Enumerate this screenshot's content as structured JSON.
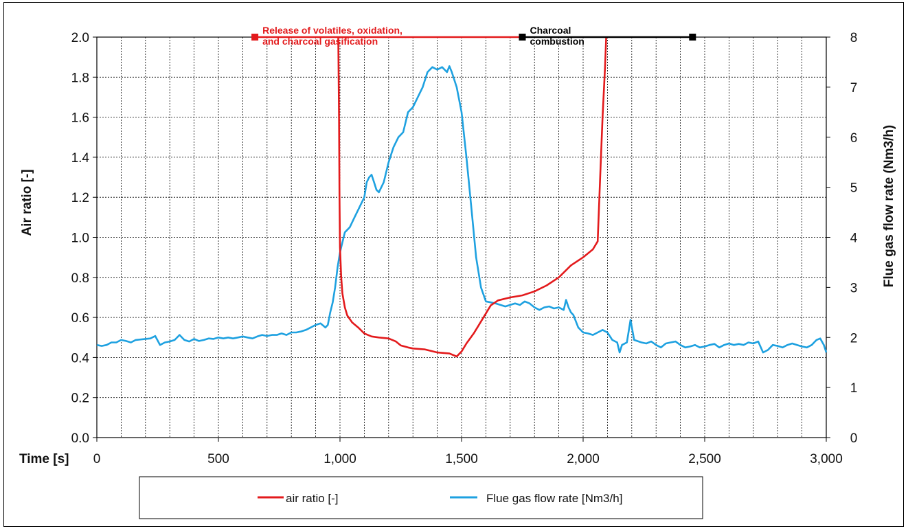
{
  "chart_data": {
    "type": "line",
    "xlabel": "Time [s]",
    "ylabel_left": "Air ratio [-]",
    "ylabel_right": "Flue gas flow rate (Nm3/h)",
    "xlim": [
      0,
      3000
    ],
    "ylim_left": [
      0,
      2
    ],
    "ylim_right": [
      0,
      8
    ],
    "grid": true,
    "legend_position": "bottom",
    "x_ticks": [
      "0",
      "500",
      "1,000",
      "1,500",
      "2,000",
      "2,500",
      "3,000"
    ],
    "y_left_ticks": [
      "0.0",
      "0.2",
      "0.4",
      "0.6",
      "0.8",
      "1.0",
      "1.2",
      "1.4",
      "1.6",
      "1.8",
      "2.0"
    ],
    "y_right_ticks": [
      "0",
      "1",
      "2",
      "3",
      "4",
      "5",
      "6",
      "7",
      "8"
    ],
    "phases": [
      {
        "label_line1": "Release of volatiles, oxidation,",
        "label_line2": "and charcoal gasification",
        "x_start": 650,
        "x_end": 1750,
        "y": 2.0,
        "color": "#e31a1c"
      },
      {
        "label_line1": "Charcoal",
        "label_line2": "combustion",
        "x_start": 1750,
        "x_end": 2450,
        "y": 2.0,
        "color": "#000000"
      }
    ],
    "series": [
      {
        "name": "air ratio  [-]",
        "axis": "left",
        "color": "#e31a1c",
        "points": [
          [
            993,
            2.0
          ],
          [
            996,
            1.6
          ],
          [
            998,
            1.2
          ],
          [
            1000,
            0.95
          ],
          [
            1005,
            0.8
          ],
          [
            1010,
            0.72
          ],
          [
            1020,
            0.65
          ],
          [
            1030,
            0.61
          ],
          [
            1050,
            0.575
          ],
          [
            1075,
            0.55
          ],
          [
            1100,
            0.52
          ],
          [
            1130,
            0.505
          ],
          [
            1160,
            0.5
          ],
          [
            1200,
            0.495
          ],
          [
            1230,
            0.48
          ],
          [
            1250,
            0.46
          ],
          [
            1280,
            0.45
          ],
          [
            1300,
            0.445
          ],
          [
            1350,
            0.44
          ],
          [
            1400,
            0.425
          ],
          [
            1450,
            0.42
          ],
          [
            1470,
            0.41
          ],
          [
            1480,
            0.405
          ],
          [
            1500,
            0.43
          ],
          [
            1520,
            0.47
          ],
          [
            1550,
            0.52
          ],
          [
            1570,
            0.56
          ],
          [
            1600,
            0.62
          ],
          [
            1620,
            0.66
          ],
          [
            1650,
            0.685
          ],
          [
            1700,
            0.7
          ],
          [
            1750,
            0.71
          ],
          [
            1800,
            0.73
          ],
          [
            1850,
            0.76
          ],
          [
            1900,
            0.8
          ],
          [
            1950,
            0.86
          ],
          [
            2000,
            0.9
          ],
          [
            2040,
            0.94
          ],
          [
            2060,
            0.98
          ],
          [
            2070,
            1.3
          ],
          [
            2080,
            1.6
          ],
          [
            2090,
            1.85
          ],
          [
            2095,
            2.0
          ]
        ]
      },
      {
        "name": "Flue gas flow rate [Nm3/h]",
        "axis": "right",
        "color": "#1ea1e0",
        "points": [
          [
            0,
            1.85
          ],
          [
            20,
            1.83
          ],
          [
            40,
            1.85
          ],
          [
            60,
            1.9
          ],
          [
            80,
            1.9
          ],
          [
            100,
            1.95
          ],
          [
            120,
            1.93
          ],
          [
            140,
            1.9
          ],
          [
            160,
            1.95
          ],
          [
            180,
            1.96
          ],
          [
            200,
            1.97
          ],
          [
            220,
            1.98
          ],
          [
            240,
            2.03
          ],
          [
            260,
            1.85
          ],
          [
            280,
            1.9
          ],
          [
            300,
            1.92
          ],
          [
            320,
            1.95
          ],
          [
            340,
            2.05
          ],
          [
            360,
            1.95
          ],
          [
            380,
            1.92
          ],
          [
            400,
            1.97
          ],
          [
            420,
            1.93
          ],
          [
            440,
            1.95
          ],
          [
            460,
            1.98
          ],
          [
            480,
            1.97
          ],
          [
            500,
            2.0
          ],
          [
            520,
            1.98
          ],
          [
            540,
            2.0
          ],
          [
            560,
            1.98
          ],
          [
            580,
            2.0
          ],
          [
            600,
            2.02
          ],
          [
            620,
            2.0
          ],
          [
            640,
            1.98
          ],
          [
            660,
            2.02
          ],
          [
            680,
            2.05
          ],
          [
            700,
            2.03
          ],
          [
            720,
            2.05
          ],
          [
            740,
            2.05
          ],
          [
            760,
            2.08
          ],
          [
            780,
            2.05
          ],
          [
            800,
            2.1
          ],
          [
            820,
            2.1
          ],
          [
            840,
            2.12
          ],
          [
            860,
            2.15
          ],
          [
            880,
            2.2
          ],
          [
            900,
            2.25
          ],
          [
            920,
            2.28
          ],
          [
            940,
            2.2
          ],
          [
            950,
            2.25
          ],
          [
            960,
            2.5
          ],
          [
            970,
            2.7
          ],
          [
            980,
            3.0
          ],
          [
            990,
            3.4
          ],
          [
            1000,
            3.7
          ],
          [
            1010,
            3.9
          ],
          [
            1020,
            4.1
          ],
          [
            1040,
            4.2
          ],
          [
            1060,
            4.4
          ],
          [
            1080,
            4.6
          ],
          [
            1100,
            4.8
          ],
          [
            1110,
            5.1
          ],
          [
            1120,
            5.2
          ],
          [
            1130,
            5.25
          ],
          [
            1140,
            5.1
          ],
          [
            1150,
            4.95
          ],
          [
            1160,
            4.9
          ],
          [
            1180,
            5.1
          ],
          [
            1200,
            5.5
          ],
          [
            1220,
            5.8
          ],
          [
            1240,
            6.0
          ],
          [
            1260,
            6.1
          ],
          [
            1280,
            6.5
          ],
          [
            1300,
            6.6
          ],
          [
            1320,
            6.8
          ],
          [
            1340,
            7.0
          ],
          [
            1360,
            7.3
          ],
          [
            1380,
            7.4
          ],
          [
            1400,
            7.35
          ],
          [
            1420,
            7.4
          ],
          [
            1440,
            7.3
          ],
          [
            1450,
            7.42
          ],
          [
            1460,
            7.3
          ],
          [
            1480,
            7.0
          ],
          [
            1500,
            6.5
          ],
          [
            1520,
            5.6
          ],
          [
            1540,
            4.6
          ],
          [
            1560,
            3.6
          ],
          [
            1580,
            3.0
          ],
          [
            1600,
            2.72
          ],
          [
            1620,
            2.7
          ],
          [
            1640,
            2.68
          ],
          [
            1660,
            2.65
          ],
          [
            1680,
            2.62
          ],
          [
            1700,
            2.65
          ],
          [
            1720,
            2.68
          ],
          [
            1740,
            2.65
          ],
          [
            1760,
            2.72
          ],
          [
            1780,
            2.68
          ],
          [
            1800,
            2.6
          ],
          [
            1820,
            2.55
          ],
          [
            1840,
            2.6
          ],
          [
            1860,
            2.62
          ],
          [
            1880,
            2.58
          ],
          [
            1900,
            2.6
          ],
          [
            1920,
            2.55
          ],
          [
            1930,
            2.75
          ],
          [
            1940,
            2.6
          ],
          [
            1950,
            2.5
          ],
          [
            1960,
            2.45
          ],
          [
            1980,
            2.2
          ],
          [
            2000,
            2.1
          ],
          [
            2020,
            2.08
          ],
          [
            2040,
            2.05
          ],
          [
            2060,
            2.1
          ],
          [
            2080,
            2.15
          ],
          [
            2100,
            2.1
          ],
          [
            2120,
            1.95
          ],
          [
            2140,
            1.9
          ],
          [
            2150,
            1.7
          ],
          [
            2160,
            1.85
          ],
          [
            2180,
            1.9
          ],
          [
            2195,
            2.35
          ],
          [
            2210,
            1.95
          ],
          [
            2240,
            1.9
          ],
          [
            2260,
            1.88
          ],
          [
            2280,
            1.92
          ],
          [
            2300,
            1.85
          ],
          [
            2320,
            1.8
          ],
          [
            2340,
            1.88
          ],
          [
            2360,
            1.9
          ],
          [
            2380,
            1.92
          ],
          [
            2400,
            1.85
          ],
          [
            2420,
            1.8
          ],
          [
            2440,
            1.82
          ],
          [
            2460,
            1.85
          ],
          [
            2480,
            1.8
          ],
          [
            2500,
            1.82
          ],
          [
            2520,
            1.85
          ],
          [
            2540,
            1.87
          ],
          [
            2560,
            1.8
          ],
          [
            2580,
            1.85
          ],
          [
            2600,
            1.88
          ],
          [
            2620,
            1.85
          ],
          [
            2640,
            1.87
          ],
          [
            2660,
            1.85
          ],
          [
            2680,
            1.9
          ],
          [
            2700,
            1.88
          ],
          [
            2720,
            1.92
          ],
          [
            2740,
            1.7
          ],
          [
            2760,
            1.75
          ],
          [
            2780,
            1.85
          ],
          [
            2800,
            1.83
          ],
          [
            2820,
            1.8
          ],
          [
            2840,
            1.85
          ],
          [
            2860,
            1.88
          ],
          [
            2880,
            1.85
          ],
          [
            2900,
            1.82
          ],
          [
            2920,
            1.8
          ],
          [
            2940,
            1.85
          ],
          [
            2960,
            1.95
          ],
          [
            2975,
            1.98
          ],
          [
            2990,
            1.85
          ],
          [
            3000,
            1.7
          ]
        ]
      }
    ]
  }
}
